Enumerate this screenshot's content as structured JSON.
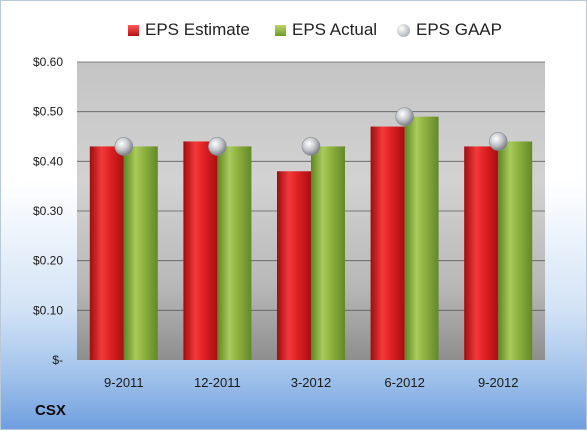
{
  "ticker": "CSX",
  "colors": {
    "estimate": "#cc1f22",
    "actual": "#8db03e",
    "gaap": "#b8bcc2"
  },
  "chart_data": {
    "type": "bar",
    "categories": [
      "9-2011",
      "12-2011",
      "3-2012",
      "6-2012",
      "9-2012"
    ],
    "series": [
      {
        "name": "EPS Estimate",
        "values": [
          0.43,
          0.44,
          0.38,
          0.47,
          0.43
        ]
      },
      {
        "name": "EPS Actual",
        "values": [
          0.43,
          0.43,
          0.43,
          0.49,
          0.44
        ]
      },
      {
        "name": "EPS GAAP",
        "values": [
          0.43,
          0.43,
          0.43,
          0.49,
          0.44
        ],
        "style": "marker"
      }
    ],
    "y_ticks": [
      "$-",
      "$0.10",
      "$0.20",
      "$0.30",
      "$0.40",
      "$0.50",
      "$0.60"
    ],
    "ylim": [
      0,
      0.6
    ],
    "grid": true,
    "legend": "top"
  }
}
